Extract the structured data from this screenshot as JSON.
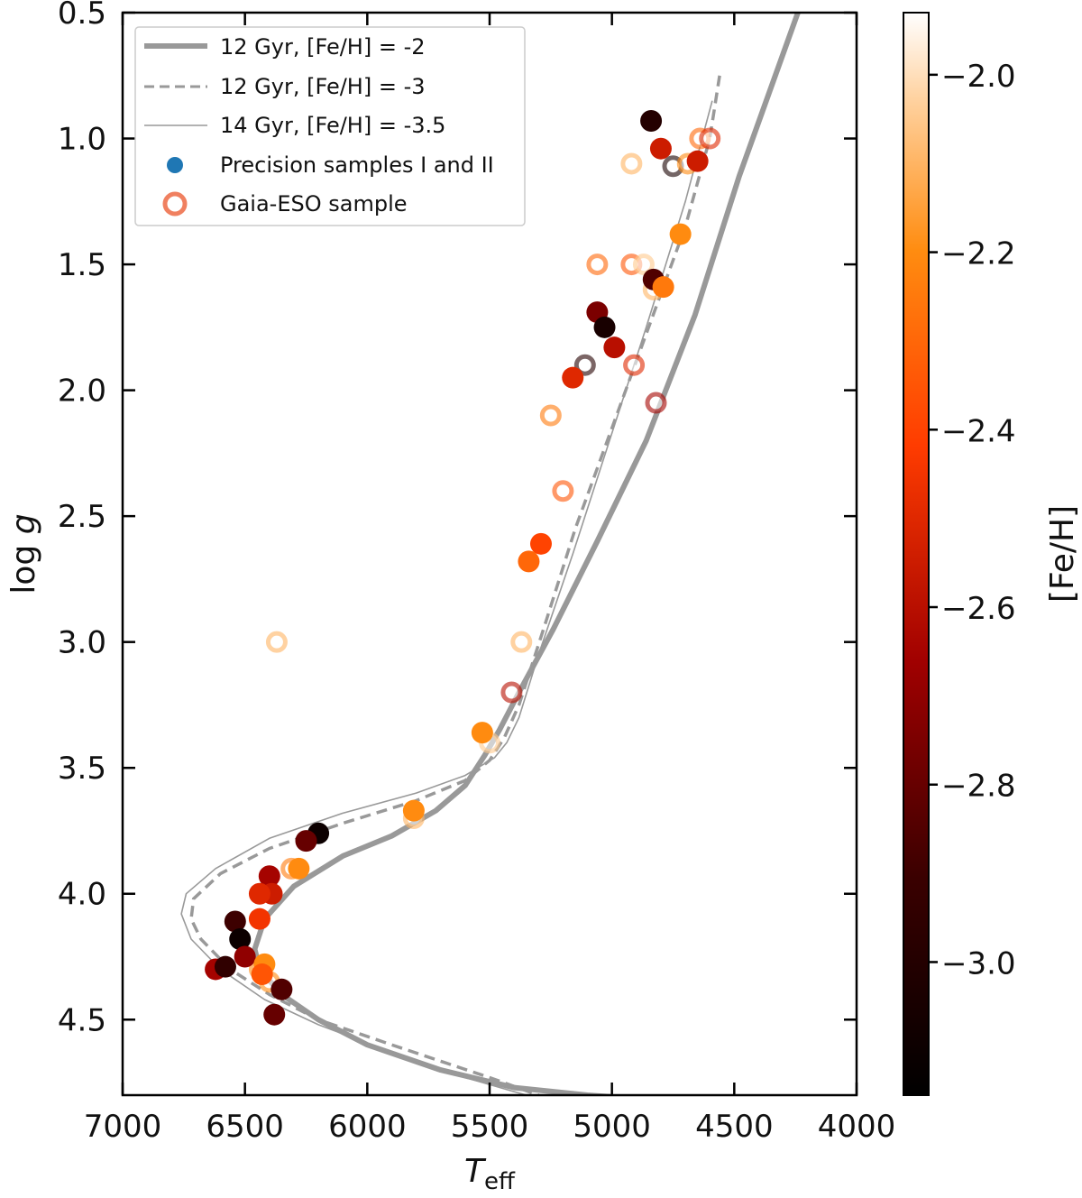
{
  "chart_data": {
    "type": "scatter",
    "title": "",
    "xlabel_main": "T",
    "xlabel_sub": "eff",
    "ylabel_main": "log ",
    "ylabel_italic": "g",
    "xlim": [
      7000,
      4000
    ],
    "ylim": [
      4.8,
      0.5
    ],
    "x_ticks": [
      7000,
      6500,
      6000,
      5500,
      5000,
      4500,
      4000
    ],
    "x_tick_labels": [
      "7000",
      "6500",
      "6000",
      "5500",
      "5000",
      "4500",
      "4000"
    ],
    "y_ticks": [
      0.5,
      1.0,
      1.5,
      2.0,
      2.5,
      3.0,
      3.5,
      4.0,
      4.5
    ],
    "y_tick_labels": [
      "0.5",
      "1.0",
      "1.5",
      "2.0",
      "2.5",
      "3.0",
      "3.5",
      "4.0",
      "4.5"
    ],
    "colorbar": {
      "label": "[Fe/H]",
      "range": [
        -3.15,
        -1.93
      ],
      "ticks": [
        -2.0,
        -2.2,
        -2.4,
        -2.6,
        -2.8,
        -3.0
      ],
      "tick_labels": [
        "−2.0",
        "−2.2",
        "−2.4",
        "−2.6",
        "−2.8",
        "−3.0"
      ],
      "colormap": "gist_heat"
    },
    "legend": {
      "position": "top-left",
      "entries": [
        {
          "label": "12 Gyr, [Fe/H] = -2",
          "style": "thick-solid",
          "color": "#999999"
        },
        {
          "label": "12 Gyr, [Fe/H] = -3",
          "style": "dashed",
          "color": "#999999"
        },
        {
          "label": "14 Gyr, [Fe/H] = -3.5",
          "style": "thin-solid",
          "color": "#999999"
        },
        {
          "label": "Precision samples I and II",
          "style": "filled-dot",
          "color": "#1f77b4"
        },
        {
          "label": "Gaia-ESO sample",
          "style": "open-circle",
          "color": "#f08060"
        }
      ]
    },
    "isochrones": [
      {
        "name": "12 Gyr, [Fe/H] = -2",
        "style": "thick",
        "x": [
          4240,
          4480,
          4660,
          4860,
          5060,
          5240,
          5380,
          5460,
          5520,
          5600,
          5720,
          5900,
          6100,
          6300,
          6420,
          6460,
          6440,
          6350,
          6200,
          6000,
          5700,
          5400,
          5100,
          4800
        ],
        "y": [
          0.5,
          1.15,
          1.7,
          2.2,
          2.6,
          2.95,
          3.2,
          3.35,
          3.45,
          3.57,
          3.67,
          3.77,
          3.85,
          3.97,
          4.1,
          4.22,
          4.3,
          4.4,
          4.5,
          4.6,
          4.7,
          4.77,
          4.8,
          4.82
        ]
      },
      {
        "name": "12 Gyr, [Fe/H] = -3",
        "style": "dashed",
        "x": [
          4560,
          4600,
          4700,
          4850,
          5000,
          5150,
          5280,
          5380,
          5440,
          5500,
          5600,
          5800,
          6100,
          6400,
          6600,
          6710,
          6720,
          6680,
          6560,
          6400,
          6200,
          5900,
          5500,
          5300
        ],
        "y": [
          0.75,
          1.0,
          1.35,
          1.75,
          2.15,
          2.55,
          2.95,
          3.25,
          3.38,
          3.47,
          3.55,
          3.63,
          3.72,
          3.82,
          3.92,
          4.02,
          4.1,
          4.18,
          4.3,
          4.4,
          4.5,
          4.6,
          4.73,
          4.8
        ]
      },
      {
        "name": "14 Gyr, [Fe/H] = -3.5",
        "style": "thin",
        "x": [
          4590,
          4700,
          4860,
          5010,
          5160,
          5300,
          5380,
          5430,
          5480,
          5600,
          5800,
          6100,
          6400,
          6620,
          6740,
          6760,
          6720,
          6600,
          6420,
          6200,
          5900,
          5600,
          5350
        ],
        "y": [
          0.85,
          1.25,
          1.75,
          2.2,
          2.65,
          3.05,
          3.3,
          3.4,
          3.46,
          3.53,
          3.6,
          3.68,
          3.78,
          3.9,
          4.0,
          4.08,
          4.18,
          4.3,
          4.42,
          4.52,
          4.63,
          4.73,
          4.8
        ]
      }
    ],
    "series": [
      {
        "name": "Precision samples I and II",
        "marker": "filled",
        "points": [
          {
            "x": 4840,
            "y": 0.93,
            "feh": -3.0
          },
          {
            "x": 4800,
            "y": 1.04,
            "feh": -2.55
          },
          {
            "x": 4650,
            "y": 1.09,
            "feh": -2.55
          },
          {
            "x": 4720,
            "y": 1.38,
            "feh": -2.2
          },
          {
            "x": 4830,
            "y": 1.56,
            "feh": -2.85
          },
          {
            "x": 4790,
            "y": 1.59,
            "feh": -2.25
          },
          {
            "x": 5060,
            "y": 1.69,
            "feh": -2.75
          },
          {
            "x": 5030,
            "y": 1.75,
            "feh": -3.05
          },
          {
            "x": 4990,
            "y": 1.83,
            "feh": -2.6
          },
          {
            "x": 5160,
            "y": 1.95,
            "feh": -2.5
          },
          {
            "x": 5290,
            "y": 2.61,
            "feh": -2.4
          },
          {
            "x": 5340,
            "y": 2.68,
            "feh": -2.3
          },
          {
            "x": 5530,
            "y": 3.36,
            "feh": -2.2
          },
          {
            "x": 5810,
            "y": 3.67,
            "feh": -2.2
          },
          {
            "x": 6200,
            "y": 3.76,
            "feh": -3.1
          },
          {
            "x": 6250,
            "y": 3.79,
            "feh": -2.8
          },
          {
            "x": 6280,
            "y": 3.9,
            "feh": -2.2
          },
          {
            "x": 6400,
            "y": 3.93,
            "feh": -2.65
          },
          {
            "x": 6390,
            "y": 4.0,
            "feh": -2.55
          },
          {
            "x": 6440,
            "y": 4.0,
            "feh": -2.5
          },
          {
            "x": 6440,
            "y": 4.1,
            "feh": -2.45
          },
          {
            "x": 6540,
            "y": 4.11,
            "feh": -2.9
          },
          {
            "x": 6520,
            "y": 4.18,
            "feh": -3.1
          },
          {
            "x": 6500,
            "y": 4.25,
            "feh": -2.7
          },
          {
            "x": 6420,
            "y": 4.28,
            "feh": -2.2
          },
          {
            "x": 6430,
            "y": 4.32,
            "feh": -2.35
          },
          {
            "x": 6620,
            "y": 4.3,
            "feh": -2.65
          },
          {
            "x": 6580,
            "y": 4.29,
            "feh": -2.95
          },
          {
            "x": 6350,
            "y": 4.38,
            "feh": -2.85
          },
          {
            "x": 6380,
            "y": 4.48,
            "feh": -2.8
          }
        ]
      },
      {
        "name": "Gaia-ESO sample",
        "marker": "open",
        "points": [
          {
            "x": 4640,
            "y": 1.0,
            "feh": -2.3
          },
          {
            "x": 4600,
            "y": 1.0,
            "feh": -2.5
          },
          {
            "x": 4920,
            "y": 1.1,
            "feh": -2.1
          },
          {
            "x": 4750,
            "y": 1.11,
            "feh": -3.05
          },
          {
            "x": 4690,
            "y": 1.1,
            "feh": -2.2
          },
          {
            "x": 5060,
            "y": 1.5,
            "feh": -2.3
          },
          {
            "x": 4920,
            "y": 1.5,
            "feh": -2.35
          },
          {
            "x": 4870,
            "y": 1.5,
            "feh": -2.05
          },
          {
            "x": 4830,
            "y": 1.6,
            "feh": -2.1
          },
          {
            "x": 5110,
            "y": 1.9,
            "feh": -3.0
          },
          {
            "x": 4910,
            "y": 1.9,
            "feh": -2.5
          },
          {
            "x": 4820,
            "y": 2.05,
            "feh": -2.65
          },
          {
            "x": 5250,
            "y": 2.1,
            "feh": -2.25
          },
          {
            "x": 5200,
            "y": 2.4,
            "feh": -2.35
          },
          {
            "x": 5370,
            "y": 3.0,
            "feh": -2.1
          },
          {
            "x": 6370,
            "y": 3.0,
            "feh": -2.1
          },
          {
            "x": 5410,
            "y": 3.2,
            "feh": -2.6
          },
          {
            "x": 5500,
            "y": 3.4,
            "feh": -2.05
          },
          {
            "x": 5810,
            "y": 3.7,
            "feh": -2.1
          },
          {
            "x": 6310,
            "y": 3.9,
            "feh": -2.25
          },
          {
            "x": 6400,
            "y": 4.35,
            "feh": -2.2
          },
          {
            "x": 6440,
            "y": 4.3,
            "feh": -2.2
          }
        ]
      }
    ]
  }
}
